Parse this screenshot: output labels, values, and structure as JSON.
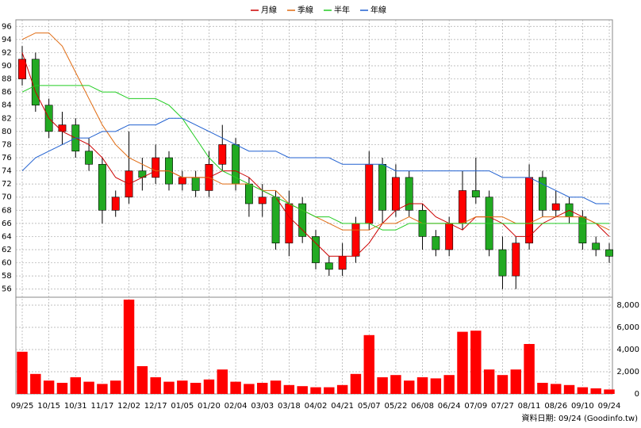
{
  "chart_data": {
    "type": "candlestick",
    "legend": [
      "月線",
      "季線",
      "半年",
      "年線"
    ],
    "footer": "資料日期: 09/24  (Goodinfo.tw)",
    "up_color": "#ff0000",
    "down_color": "#22aa22",
    "volume_color": "#ff0000",
    "grid": true,
    "categories": [
      "09/25",
      null,
      "10/15",
      null,
      "10/31",
      null,
      "11/17",
      null,
      "12/02",
      null,
      "12/17",
      null,
      "01/05",
      null,
      "01/20",
      null,
      "02/04",
      null,
      "03/03",
      null,
      "03/18",
      null,
      "04/02",
      null,
      "04/21",
      null,
      "05/07",
      null,
      "05/22",
      null,
      "06/08",
      null,
      "06/24",
      null,
      "07/09",
      null,
      "07/27",
      null,
      "08/11",
      null,
      "08/26",
      null,
      "09/10",
      null,
      "09/24"
    ],
    "open": [
      88,
      91,
      84,
      80,
      81,
      77,
      75,
      68,
      70,
      74,
      73,
      76,
      72,
      73,
      71,
      75,
      78,
      72,
      69,
      70,
      63,
      69,
      64,
      60,
      59,
      61,
      66,
      75,
      68,
      73,
      68,
      64,
      62,
      66,
      71,
      70,
      62,
      58,
      63,
      73,
      68,
      69,
      67,
      63,
      62
    ],
    "high": [
      93,
      92,
      85,
      83,
      82,
      79,
      76,
      71,
      80,
      76,
      78,
      77,
      74,
      74,
      77,
      81,
      79,
      73,
      72,
      71,
      71,
      70,
      65,
      61,
      63,
      67,
      77,
      76,
      75,
      74,
      69,
      65,
      67,
      74,
      76,
      71,
      64,
      64,
      75,
      74,
      71,
      70,
      68,
      64,
      63
    ],
    "low": [
      87,
      83,
      79,
      78,
      76,
      74,
      66,
      67,
      69,
      71,
      72,
      71,
      71,
      70,
      70,
      74,
      71,
      67,
      67,
      62,
      61,
      63,
      59,
      58,
      58,
      60,
      65,
      66,
      67,
      67,
      62,
      61,
      61,
      65,
      69,
      61,
      56,
      56,
      62,
      67,
      67,
      66,
      62,
      61,
      60
    ],
    "close": [
      91,
      84,
      80,
      81,
      77,
      75,
      68,
      70,
      74,
      73,
      76,
      72,
      73,
      71,
      75,
      78,
      72,
      69,
      70,
      63,
      69,
      64,
      60,
      59,
      61,
      66,
      75,
      68,
      73,
      68,
      64,
      62,
      66,
      71,
      70,
      62,
      58,
      63,
      73,
      68,
      69,
      67,
      63,
      62,
      61
    ],
    "volume": [
      3800,
      1800,
      1200,
      1000,
      1500,
      1100,
      900,
      1200,
      8500,
      2500,
      1500,
      1100,
      1200,
      1000,
      1300,
      2200,
      1100,
      900,
      1000,
      1200,
      800,
      700,
      600,
      600,
      800,
      1800,
      5300,
      1500,
      1700,
      1200,
      1500,
      1400,
      1700,
      5600,
      5700,
      2200,
      1700,
      2200,
      4500,
      1000,
      900,
      800,
      600,
      500,
      400
    ],
    "series": [
      {
        "name": "月線",
        "color": "#cc0000",
        "values": [
          92,
          86,
          82,
          80,
          79,
          78,
          76,
          73,
          72,
          73,
          74,
          74,
          73,
          73,
          73,
          74,
          74,
          73,
          71,
          70,
          67,
          65,
          63,
          61,
          61,
          61,
          63,
          66,
          68,
          69,
          69,
          67,
          66,
          65,
          67,
          67,
          66,
          64,
          64,
          66,
          67,
          68,
          67,
          66,
          64
        ]
      },
      {
        "name": "季線",
        "color": "#e06a10",
        "values": [
          94,
          95,
          95,
          93,
          89,
          85,
          81,
          78,
          76,
          75,
          74,
          74,
          73,
          73,
          73,
          72,
          72,
          72,
          71,
          71,
          69,
          68,
          67,
          66,
          65,
          65,
          65,
          66,
          66,
          67,
          66,
          66,
          66,
          66,
          67,
          67,
          67,
          66,
          66,
          67,
          67,
          67,
          67,
          66,
          65
        ]
      },
      {
        "name": "半年",
        "color": "#22cc22",
        "values": [
          86,
          87,
          87,
          87,
          87,
          87,
          86,
          86,
          85,
          85,
          85,
          84,
          82,
          79,
          76,
          74,
          73,
          72,
          71,
          70,
          69,
          68,
          67,
          67,
          66,
          66,
          66,
          65,
          65,
          66,
          66,
          66,
          66,
          66,
          66,
          66,
          66,
          66,
          66,
          66,
          66,
          66,
          66,
          66,
          66
        ]
      },
      {
        "name": "年線",
        "color": "#2060d0",
        "values": [
          74,
          76,
          77,
          78,
          79,
          79,
          80,
          80,
          81,
          81,
          81,
          82,
          82,
          81,
          80,
          79,
          78,
          77,
          77,
          77,
          76,
          76,
          76,
          76,
          75,
          75,
          75,
          75,
          74,
          74,
          74,
          74,
          74,
          74,
          74,
          74,
          73,
          73,
          73,
          72,
          71,
          70,
          70,
          69,
          69
        ]
      }
    ],
    "ylim": [
      55,
      97
    ],
    "yticks": [
      56,
      58,
      60,
      62,
      64,
      66,
      68,
      70,
      72,
      74,
      76,
      78,
      80,
      82,
      84,
      86,
      88,
      90,
      92,
      94,
      96
    ],
    "y2lim": [
      0,
      8500
    ],
    "y2ticks": [
      0,
      {
        "value": 2000,
        "label": "2,000"
      },
      {
        "value": 4000,
        "label": "4,000"
      },
      {
        "value": 6000,
        "label": "6,000"
      },
      {
        "value": 8000,
        "label": "8,000"
      }
    ]
  }
}
